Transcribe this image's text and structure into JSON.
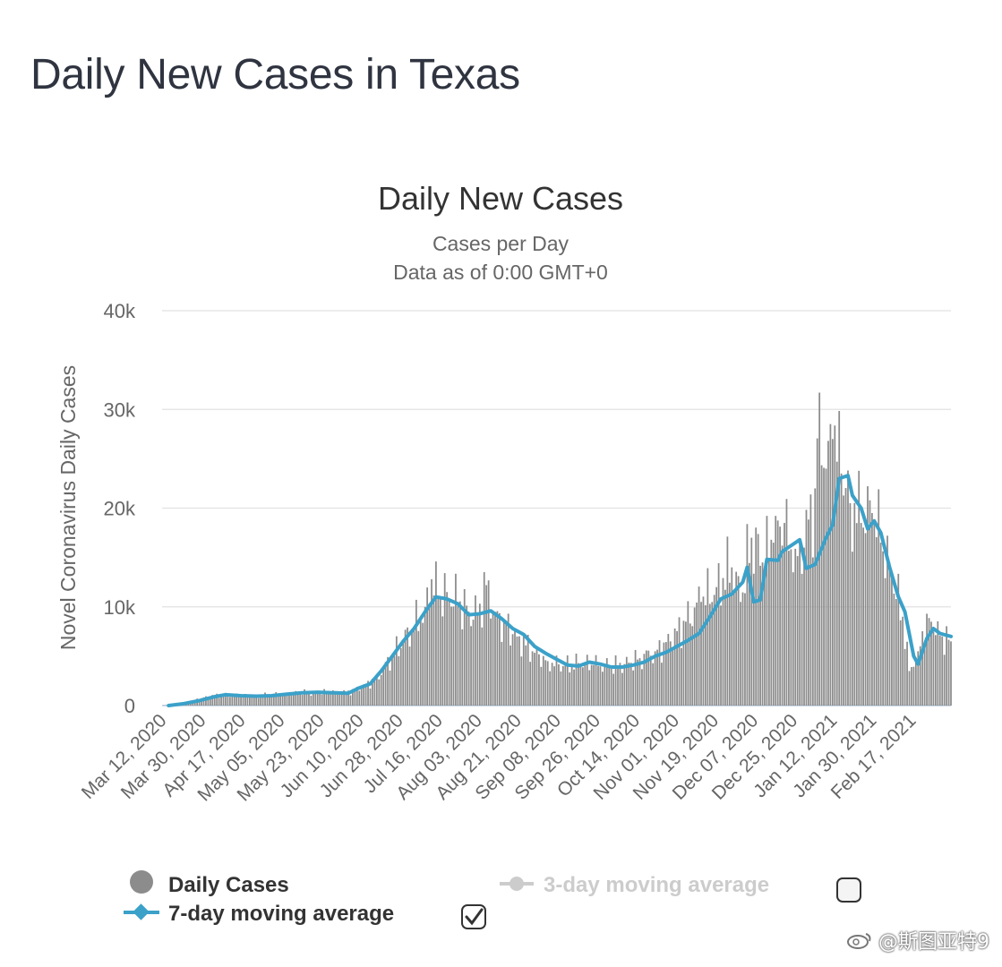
{
  "page": {
    "title": "Daily New Cases in Texas"
  },
  "colors": {
    "bar": "#8c8c8c",
    "line": "#3ba1c9",
    "grid": "#e2e2e2",
    "text": "#333333",
    "muted": "#666666",
    "disabled": "#cccccc"
  },
  "chart_data": {
    "type": "bar",
    "title": "Daily New Cases",
    "subtitle": "Cases per Day",
    "subtitle2": "Data as of 0:00 GMT+0",
    "ylabel": "Novel Coronavirus Daily Cases",
    "xlabel": "",
    "ylim": [
      0,
      40000
    ],
    "yticks": [
      0,
      10000,
      20000,
      30000,
      40000
    ],
    "ytick_labels": [
      "0",
      "10k",
      "20k",
      "30k",
      "40k"
    ],
    "grid": true,
    "x_start": "2020-03-12",
    "x_end": "2021-03-07",
    "x_tick_labels": [
      "Mar 12, 2020",
      "Mar 30, 2020",
      "Apr 17, 2020",
      "May 05, 2020",
      "May 23, 2020",
      "Jun 10, 2020",
      "Jun 28, 2020",
      "Jul 16, 2020",
      "Aug 03, 2020",
      "Aug 21, 2020",
      "Sep 08, 2020",
      "Sep 26, 2020",
      "Oct 14, 2020",
      "Nov 01, 2020",
      "Nov 19, 2020",
      "Dec 07, 2020",
      "Dec 25, 2020",
      "Jan 12, 2021",
      "Jan 30, 2021",
      "Feb 17, 2021"
    ],
    "series": [
      {
        "name": "Daily Cases",
        "kind": "bar",
        "points": [
          [
            "2020-03-12",
            0
          ],
          [
            "2020-03-19",
            100
          ],
          [
            "2020-03-26",
            500
          ],
          [
            "2020-04-02",
            900
          ],
          [
            "2020-04-09",
            1100
          ],
          [
            "2020-04-16",
            1000
          ],
          [
            "2020-04-23",
            900
          ],
          [
            "2020-04-30",
            1100
          ],
          [
            "2020-05-07",
            1200
          ],
          [
            "2020-05-14",
            1300
          ],
          [
            "2020-05-21",
            1300
          ],
          [
            "2020-05-28",
            1400
          ],
          [
            "2020-06-04",
            1300
          ],
          [
            "2020-06-11",
            1800
          ],
          [
            "2020-06-18",
            2800
          ],
          [
            "2020-06-25",
            5000
          ],
          [
            "2020-06-30",
            6500
          ],
          [
            "2020-07-05",
            8000
          ],
          [
            "2020-07-10",
            10000
          ],
          [
            "2020-07-13",
            12800
          ],
          [
            "2020-07-16",
            10800
          ],
          [
            "2020-07-20",
            11500
          ],
          [
            "2020-07-25",
            10500
          ],
          [
            "2020-07-30",
            9500
          ],
          [
            "2020-08-03",
            9200
          ],
          [
            "2020-08-07",
            12200
          ],
          [
            "2020-08-11",
            9500
          ],
          [
            "2020-08-15",
            8500
          ],
          [
            "2020-08-21",
            7000
          ],
          [
            "2020-08-28",
            5500
          ],
          [
            "2020-09-04",
            4500
          ],
          [
            "2020-09-11",
            4000
          ],
          [
            "2020-09-18",
            4300
          ],
          [
            "2020-09-25",
            4100
          ],
          [
            "2020-10-02",
            4000
          ],
          [
            "2020-10-09",
            4200
          ],
          [
            "2020-10-16",
            4800
          ],
          [
            "2020-10-23",
            5500
          ],
          [
            "2020-10-30",
            6500
          ],
          [
            "2020-11-06",
            8500
          ],
          [
            "2020-11-13",
            10500
          ],
          [
            "2020-11-20",
            12000
          ],
          [
            "2020-11-27",
            14000
          ],
          [
            "2020-12-01",
            10500
          ],
          [
            "2020-12-06",
            17000
          ],
          [
            "2020-12-11",
            14500
          ],
          [
            "2020-12-16",
            16500
          ],
          [
            "2020-12-21",
            18500
          ],
          [
            "2020-12-25",
            13500
          ],
          [
            "2020-12-30",
            16000
          ],
          [
            "2021-01-04",
            22000
          ],
          [
            "2021-01-06",
            31700
          ],
          [
            "2021-01-09",
            24000
          ],
          [
            "2021-01-12",
            27000
          ],
          [
            "2021-01-16",
            23500
          ],
          [
            "2021-01-20",
            20500
          ],
          [
            "2021-01-25",
            18500
          ],
          [
            "2021-01-30",
            19500
          ],
          [
            "2021-02-03",
            16500
          ],
          [
            "2021-02-08",
            13000
          ],
          [
            "2021-02-13",
            9000
          ],
          [
            "2021-02-16",
            3500
          ],
          [
            "2021-02-20",
            5500
          ],
          [
            "2021-02-24",
            9300
          ],
          [
            "2021-02-27",
            7500
          ],
          [
            "2021-03-03",
            7000
          ],
          [
            "2021-03-07",
            6500
          ]
        ]
      },
      {
        "name": "7-day moving average",
        "kind": "line",
        "points": [
          [
            "2020-03-15",
            0
          ],
          [
            "2020-03-22",
            200
          ],
          [
            "2020-03-29",
            500
          ],
          [
            "2020-04-05",
            900
          ],
          [
            "2020-04-10",
            1100
          ],
          [
            "2020-04-17",
            1000
          ],
          [
            "2020-04-24",
            950
          ],
          [
            "2020-05-01",
            1000
          ],
          [
            "2020-05-08",
            1150
          ],
          [
            "2020-05-15",
            1300
          ],
          [
            "2020-05-22",
            1350
          ],
          [
            "2020-05-29",
            1300
          ],
          [
            "2020-06-05",
            1250
          ],
          [
            "2020-06-10",
            1800
          ],
          [
            "2020-06-15",
            2200
          ],
          [
            "2020-06-20",
            3500
          ],
          [
            "2020-06-25",
            5000
          ],
          [
            "2020-06-30",
            6500
          ],
          [
            "2020-07-05",
            7800
          ],
          [
            "2020-07-10",
            9500
          ],
          [
            "2020-07-15",
            11000
          ],
          [
            "2020-07-20",
            10800
          ],
          [
            "2020-07-25",
            10300
          ],
          [
            "2020-07-30",
            9200
          ],
          [
            "2020-08-04",
            9300
          ],
          [
            "2020-08-09",
            9600
          ],
          [
            "2020-08-14",
            8800
          ],
          [
            "2020-08-19",
            7800
          ],
          [
            "2020-08-24",
            7200
          ],
          [
            "2020-08-29",
            6000
          ],
          [
            "2020-09-03",
            5300
          ],
          [
            "2020-09-08",
            4700
          ],
          [
            "2020-09-13",
            4100
          ],
          [
            "2020-09-18",
            4000
          ],
          [
            "2020-09-23",
            4400
          ],
          [
            "2020-09-28",
            4200
          ],
          [
            "2020-10-03",
            3900
          ],
          [
            "2020-10-08",
            3900
          ],
          [
            "2020-10-13",
            4100
          ],
          [
            "2020-10-18",
            4400
          ],
          [
            "2020-10-23",
            5000
          ],
          [
            "2020-10-28",
            5400
          ],
          [
            "2020-11-02",
            6000
          ],
          [
            "2020-11-07",
            6600
          ],
          [
            "2020-11-12",
            7300
          ],
          [
            "2020-11-17",
            9000
          ],
          [
            "2020-11-22",
            10800
          ],
          [
            "2020-11-27",
            11300
          ],
          [
            "2020-12-02",
            12500
          ],
          [
            "2020-12-04",
            14000
          ],
          [
            "2020-12-07",
            10500
          ],
          [
            "2020-12-10",
            10700
          ],
          [
            "2020-12-13",
            14800
          ],
          [
            "2020-12-18",
            14700
          ],
          [
            "2020-12-20",
            15600
          ],
          [
            "2020-12-24",
            16200
          ],
          [
            "2020-12-28",
            16800
          ],
          [
            "2020-12-31",
            13900
          ],
          [
            "2021-01-04",
            14300
          ],
          [
            "2021-01-09",
            17000
          ],
          [
            "2021-01-12",
            18300
          ],
          [
            "2021-01-15",
            23000
          ],
          [
            "2021-01-19",
            23300
          ],
          [
            "2021-01-21",
            21300
          ],
          [
            "2021-01-25",
            20000
          ],
          [
            "2021-01-28",
            17900
          ],
          [
            "2021-01-31",
            18700
          ],
          [
            "2021-02-03",
            17500
          ],
          [
            "2021-02-07",
            14000
          ],
          [
            "2021-02-11",
            11000
          ],
          [
            "2021-02-14",
            9500
          ],
          [
            "2021-02-18",
            5000
          ],
          [
            "2021-02-20",
            4200
          ],
          [
            "2021-02-24",
            6800
          ],
          [
            "2021-02-27",
            7800
          ],
          [
            "2021-03-02",
            7300
          ],
          [
            "2021-03-07",
            7000
          ]
        ]
      }
    ],
    "legend": {
      "placement": "bottom",
      "items": [
        {
          "label": "Daily Cases",
          "enabled": true,
          "checked": null
        },
        {
          "label": "7-day moving average",
          "enabled": true,
          "checked": true
        },
        {
          "label": "3-day moving average",
          "enabled": false,
          "checked": false
        }
      ]
    }
  },
  "watermark": {
    "text": "@斯图亚特9"
  }
}
